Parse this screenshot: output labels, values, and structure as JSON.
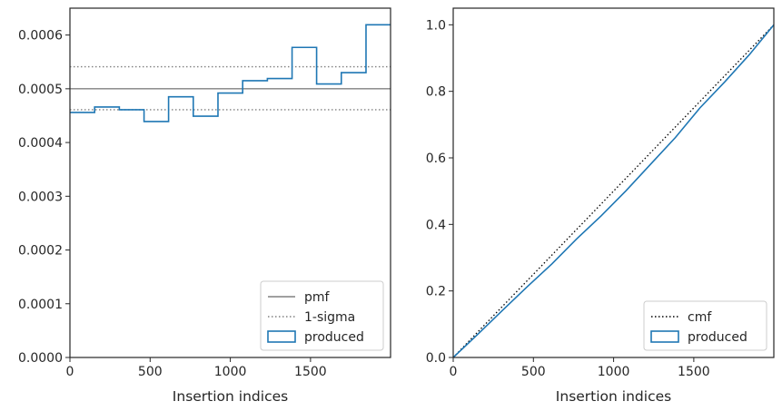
{
  "chart_data": [
    {
      "type": "line",
      "title": "",
      "xlabel": "Insertion indices",
      "ylabel": "",
      "xlim": [
        0,
        1999
      ],
      "ylim": [
        0,
        0.00065
      ],
      "xticks": [
        0,
        500,
        1000,
        1500
      ],
      "xtick_labels": [
        "0",
        "500",
        "1000",
        "1500"
      ],
      "yticks": [
        0,
        0.0001,
        0.0002,
        0.0003,
        0.0004,
        0.0005,
        0.0006
      ],
      "ytick_labels": [
        "0.0000",
        "0.0001",
        "0.0002",
        "0.0003",
        "0.0004",
        "0.0005",
        "0.0006"
      ],
      "grid": false,
      "legend_position": "bottom-right",
      "reference_lines": [
        {
          "name": "pmf",
          "style": "solid",
          "color": "#808080",
          "y": 0.0005
        },
        {
          "name": "1-sigma",
          "style": "dotted",
          "color": "#808080",
          "y": [
            0.000461,
            0.000541
          ]
        }
      ],
      "series": [
        {
          "name": "produced",
          "style": "step",
          "color": "#1f77b4",
          "bin_edges": [
            0,
            154,
            308,
            462,
            615,
            769,
            923,
            1077,
            1231,
            1385,
            1538,
            1692,
            1846,
            1999
          ],
          "values": [
            0.000456,
            0.000466,
            0.000461,
            0.000439,
            0.000485,
            0.000449,
            0.000492,
            0.000515,
            0.000519,
            0.000577,
            0.000509,
            0.00053,
            0.000619
          ]
        }
      ],
      "legend": [
        {
          "label": "pmf",
          "kind": "solid-line",
          "color": "#808080"
        },
        {
          "label": "1-sigma",
          "kind": "dotted-line",
          "color": "#808080"
        },
        {
          "label": "produced",
          "kind": "patch",
          "color": "#1f77b4"
        }
      ]
    },
    {
      "type": "line",
      "title": "",
      "xlabel": "Insertion indices",
      "ylabel": "",
      "xlim": [
        0,
        1999
      ],
      "ylim": [
        0,
        1.05
      ],
      "xticks": [
        0,
        500,
        1000,
        1500
      ],
      "xtick_labels": [
        "0",
        "500",
        "1000",
        "1500"
      ],
      "yticks": [
        0,
        0.2,
        0.4,
        0.6,
        0.8,
        1.0
      ],
      "ytick_labels": [
        "0.0",
        "0.2",
        "0.4",
        "0.6",
        "0.8",
        "1.0"
      ],
      "grid": false,
      "legend_position": "bottom-right",
      "series": [
        {
          "name": "cmf",
          "style": "dotted",
          "color": "#000000",
          "x": [
            0,
            1999
          ],
          "y": [
            0,
            1.0
          ]
        },
        {
          "name": "produced",
          "style": "step",
          "color": "#1f77b4",
          "x": [
            0,
            154,
            308,
            462,
            615,
            769,
            923,
            1077,
            1231,
            1385,
            1538,
            1692,
            1846,
            1999
          ],
          "y": [
            0,
            0.07,
            0.142,
            0.213,
            0.281,
            0.356,
            0.426,
            0.501,
            0.581,
            0.661,
            0.75,
            0.828,
            0.91,
            1.0
          ]
        }
      ],
      "legend": [
        {
          "label": "cmf",
          "kind": "dotted-line",
          "color": "#000000"
        },
        {
          "label": "produced",
          "kind": "patch",
          "color": "#1f77b4"
        }
      ]
    }
  ]
}
